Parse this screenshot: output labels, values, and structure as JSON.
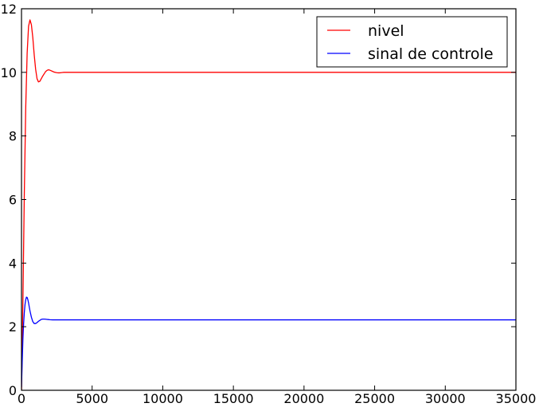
{
  "chart_data": {
    "type": "line",
    "title": "",
    "xlabel": "",
    "ylabel": "",
    "xlim": [
      0,
      35000
    ],
    "ylim": [
      0,
      12
    ],
    "grid": false,
    "legend_position": "top-right",
    "x_ticks": [
      "0",
      "5000",
      "10000",
      "15000",
      "20000",
      "25000",
      "30000",
      "35000"
    ],
    "y_ticks": [
      "0",
      "2",
      "4",
      "6",
      "8",
      "10",
      "12"
    ],
    "series": [
      {
        "name": "nivel",
        "color": "#ff0000",
        "x": [
          0,
          100,
          200,
          300,
          400,
          500,
          600,
          700,
          800,
          900,
          1000,
          1100,
          1200,
          1300,
          1400,
          1500,
          1600,
          1700,
          1800,
          1900,
          2000,
          2100,
          2200,
          2300,
          2400,
          2500,
          2600,
          2700,
          2800,
          2900,
          3000,
          3200,
          3400,
          3600,
          3800,
          4000,
          4500,
          5000,
          10000,
          15000,
          20000,
          25000,
          30000,
          35000
        ],
        "y": [
          0,
          2.8,
          6.2,
          8.9,
          10.6,
          11.45,
          11.65,
          11.5,
          11.1,
          10.55,
          10.1,
          9.8,
          9.7,
          9.72,
          9.8,
          9.88,
          9.95,
          10.02,
          10.06,
          10.08,
          10.07,
          10.05,
          10.03,
          10.01,
          10.0,
          9.99,
          9.985,
          9.985,
          9.99,
          9.995,
          10.0,
          10.0,
          10.0,
          10.0,
          10.0,
          10.0,
          10.0,
          10.0,
          10.0,
          10.0,
          10.0,
          10.0,
          10.0,
          10.0
        ]
      },
      {
        "name": "sinal de controle",
        "color": "#0000ff",
        "x": [
          0,
          50,
          100,
          150,
          200,
          250,
          300,
          350,
          400,
          450,
          500,
          550,
          600,
          700,
          800,
          900,
          1000,
          1100,
          1200,
          1300,
          1400,
          1500,
          1600,
          1700,
          1800,
          1900,
          2000,
          2200,
          2400,
          2600,
          2800,
          3000,
          3500,
          4000,
          5000,
          10000,
          15000,
          20000,
          25000,
          30000,
          35000
        ],
        "y": [
          0.1,
          0.9,
          1.6,
          2.1,
          2.45,
          2.7,
          2.85,
          2.93,
          2.92,
          2.85,
          2.75,
          2.62,
          2.5,
          2.3,
          2.16,
          2.1,
          2.1,
          2.13,
          2.17,
          2.2,
          2.23,
          2.24,
          2.24,
          2.235,
          2.23,
          2.225,
          2.22,
          2.215,
          2.215,
          2.215,
          2.215,
          2.215,
          2.215,
          2.215,
          2.215,
          2.215,
          2.215,
          2.215,
          2.215,
          2.215,
          2.215
        ]
      }
    ]
  }
}
